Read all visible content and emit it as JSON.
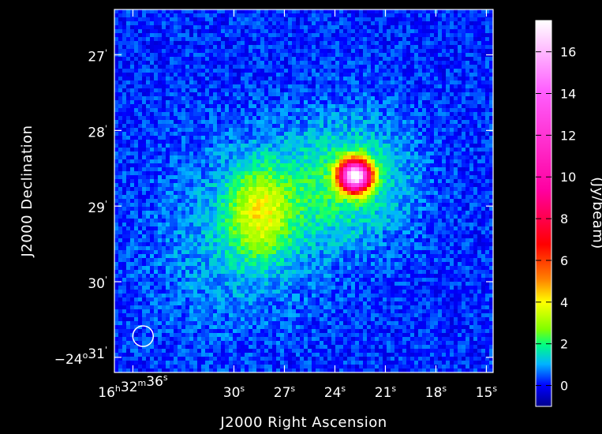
{
  "chart_data": {
    "type": "heatmap",
    "title": "",
    "xlabel": "J2000 Right Ascension",
    "ylabel": "J2000 Declination",
    "x_ticks": [
      {
        "label": "16h32m36s",
        "value": 36,
        "parts": [
          [
            "16",
            "h"
          ],
          [
            "32",
            "m"
          ],
          [
            "36",
            "s"
          ]
        ]
      },
      {
        "label": "30s",
        "value": 30,
        "parts": [
          [
            "30",
            "s"
          ]
        ]
      },
      {
        "label": "27s",
        "value": 27,
        "parts": [
          [
            "27",
            "s"
          ]
        ]
      },
      {
        "label": "24s",
        "value": 24,
        "parts": [
          [
            "24",
            "s"
          ]
        ]
      },
      {
        "label": "21s",
        "value": 21,
        "parts": [
          [
            "21",
            "s"
          ]
        ]
      },
      {
        "label": "18s",
        "value": 18,
        "parts": [
          [
            "18",
            "s"
          ]
        ]
      },
      {
        "label": "15s",
        "value": 15,
        "parts": [
          [
            "15",
            "s"
          ]
        ]
      }
    ],
    "y_ticks": [
      {
        "label": "27'",
        "value": 27,
        "parts": [
          [
            "27",
            "'"
          ]
        ]
      },
      {
        "label": "28'",
        "value": 28,
        "parts": [
          [
            "28",
            "'"
          ]
        ]
      },
      {
        "label": "29'",
        "value": 29,
        "parts": [
          [
            "29",
            "'"
          ]
        ]
      },
      {
        "label": "30'",
        "value": 30,
        "parts": [
          [
            "30",
            "'"
          ]
        ]
      },
      {
        "label": "-24°31'",
        "value": 31,
        "parts": [
          [
            "−24",
            "o"
          ],
          [
            "31",
            "'"
          ]
        ]
      }
    ],
    "xlim_seconds": [
      37.1,
      14.6
    ],
    "ylim_arcmin": [
      31.2,
      26.4
    ],
    "colorbar": {
      "label": "(Jy/beam)",
      "range": [
        -1,
        17.5
      ],
      "ticks": [
        0,
        2,
        4,
        6,
        8,
        10,
        12,
        14,
        16
      ],
      "colormap": [
        "#00008c",
        "#0000ff",
        "#00b4ff",
        "#00ff80",
        "#80ff00",
        "#ffff00",
        "#ff8000",
        "#ff0000",
        "#ff00a0",
        "#ff60ff",
        "#ffffff"
      ]
    },
    "sources": [
      {
        "name": "",
        "ra_s": 22.8,
        "dec_arcmin": 28.6,
        "peak": 17.0
      },
      {
        "name": "",
        "ra_s": 28.5,
        "dec_arcmin": 29.1,
        "peak": 2.6
      }
    ],
    "beam": {
      "ra_s": 35.4,
      "dec_arcmin": 30.72
    },
    "background_level": 0.2
  }
}
